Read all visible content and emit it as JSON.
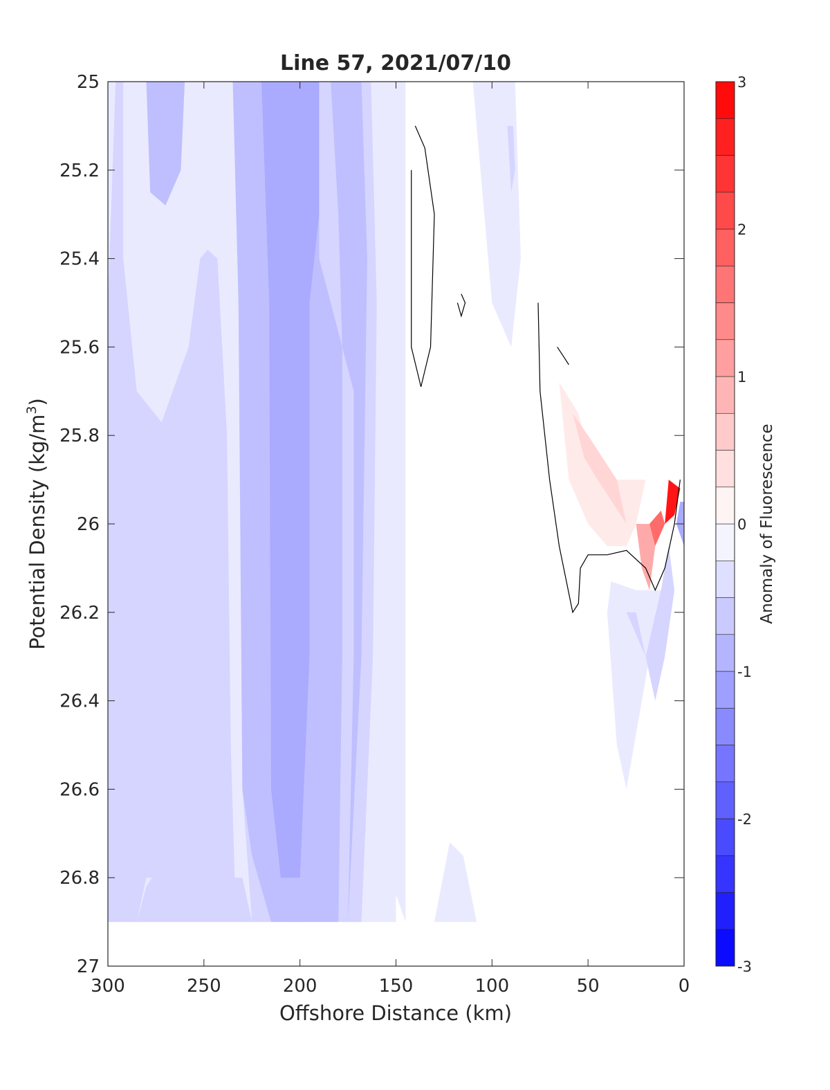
{
  "chart_data": {
    "type": "heatmap",
    "title": "Line 57, 2021/07/10",
    "xlabel": "Offshore Distance (km)",
    "ylabel_base": "Potential Density (kg/m",
    "ylabel_sup": "3",
    "ylabel_close": ")",
    "xlim": [
      300,
      0
    ],
    "ylim": [
      25,
      27
    ],
    "x_reversed": true,
    "y_reversed": true,
    "xticks": [
      300,
      250,
      200,
      150,
      100,
      50,
      0
    ],
    "xtick_labels": [
      "300",
      "250",
      "200",
      "150",
      "100",
      "50",
      "0"
    ],
    "yticks": [
      25,
      25.2,
      25.4,
      25.6,
      25.8,
      26,
      26.2,
      26.4,
      26.6,
      26.8,
      27
    ],
    "ytick_labels": [
      "25",
      "25.2",
      "25.4",
      "25.6",
      "25.8",
      "26",
      "26.2",
      "26.4",
      "26.6",
      "26.8",
      "27"
    ],
    "colorbar": {
      "label": "Anomaly of Fluorescence",
      "range": [
        -3,
        3
      ],
      "levels": 24,
      "ticks": [
        -3,
        -2,
        -1,
        0,
        1,
        2,
        3
      ],
      "tick_labels": [
        "-3",
        "-2",
        "-1",
        "0",
        "1",
        "2",
        "3"
      ],
      "negative_color": "#0000ff",
      "positive_color": "#ff0000",
      "zero_color": "#ffffff"
    },
    "regions": [
      {
        "level": -0.25,
        "points": [
          [
            300,
            25
          ],
          [
            300,
            26.9
          ],
          [
            150,
            26.9
          ],
          [
            158,
            26.3
          ],
          [
            160,
            25.7
          ],
          [
            158,
            25
          ],
          [
            145,
            25
          ],
          [
            145,
            26.9
          ]
        ]
      },
      {
        "level": -0.25,
        "points": [
          [
            300,
            25
          ],
          [
            150,
            25
          ],
          [
            150,
            26.9
          ],
          [
            300,
            26.9
          ]
        ]
      },
      {
        "level": 0,
        "points": [
          [
            246,
            26.05
          ],
          [
            245,
            26.6
          ],
          [
            248,
            26.55
          ],
          [
            248,
            26.05
          ]
        ]
      },
      {
        "level": -0.5,
        "points": [
          [
            292,
            25
          ],
          [
            292,
            25.4
          ],
          [
            285,
            25.7
          ],
          [
            272,
            25.77
          ],
          [
            258,
            25.6
          ],
          [
            252,
            25.4
          ],
          [
            248,
            25.38
          ],
          [
            243,
            25.4
          ],
          [
            238,
            25.8
          ],
          [
            236,
            26.5
          ],
          [
            234,
            26.8
          ],
          [
            230,
            26.8
          ],
          [
            225,
            26.9
          ],
          [
            265,
            26.9
          ],
          [
            270,
            26.8
          ],
          [
            280,
            26.8
          ],
          [
            285,
            26.9
          ],
          [
            300,
            26.9
          ],
          [
            300,
            25.5
          ],
          [
            296,
            25
          ],
          [
            163,
            25
          ],
          [
            160,
            25.5
          ],
          [
            162,
            26.3
          ],
          [
            168,
            26.9
          ],
          [
            225,
            26.9
          ],
          [
            230,
            26.6
          ],
          [
            232,
            25.5
          ],
          [
            234,
            25
          ]
        ]
      },
      {
        "level": -0.5,
        "points": [
          [
            274,
            26.78
          ],
          [
            268,
            26.8
          ],
          [
            262,
            26.9
          ],
          [
            285,
            26.9
          ],
          [
            280,
            26.82
          ]
        ]
      },
      {
        "level": -0.75,
        "points": [
          [
            280,
            25
          ],
          [
            278,
            25.25
          ],
          [
            270,
            25.28
          ],
          [
            262,
            25.2
          ],
          [
            260,
            25
          ],
          [
            235,
            25
          ],
          [
            232,
            25.5
          ],
          [
            230,
            26.6
          ],
          [
            225,
            26.75
          ],
          [
            215,
            26.9
          ],
          [
            175,
            26.9
          ],
          [
            172,
            26.3
          ],
          [
            172,
            25.7
          ],
          [
            178,
            25.6
          ],
          [
            180,
            25.3
          ],
          [
            184,
            25
          ],
          [
            168,
            25
          ],
          [
            165,
            25.4
          ],
          [
            168,
            26.3
          ],
          [
            175,
            26.9
          ],
          [
            200,
            26.9
          ],
          [
            202,
            26.6
          ],
          [
            210,
            25.5
          ],
          [
            215,
            25
          ],
          [
            232,
            25
          ]
        ]
      },
      {
        "level": -0.75,
        "points": [
          [
            230,
            25
          ],
          [
            228,
            25.3
          ],
          [
            222,
            26.5
          ],
          [
            218,
            26.8
          ],
          [
            205,
            26.9
          ],
          [
            180,
            26.9
          ],
          [
            178,
            26.3
          ],
          [
            178,
            25.6
          ],
          [
            190,
            25.4
          ],
          [
            190,
            25
          ],
          [
            180,
            25
          ]
        ]
      },
      {
        "level": -1.0,
        "points": [
          [
            220,
            25
          ],
          [
            216,
            25.5
          ],
          [
            215,
            26.6
          ],
          [
            210,
            26.8
          ],
          [
            200,
            26.8
          ],
          [
            195,
            26.3
          ],
          [
            195,
            25.5
          ],
          [
            190,
            25.3
          ],
          [
            190,
            25
          ],
          [
            210,
            25
          ]
        ]
      },
      {
        "level": -0.25,
        "points": [
          [
            110,
            25
          ],
          [
            108,
            25.1
          ],
          [
            100,
            25.5
          ],
          [
            90,
            25.6
          ],
          [
            85,
            25.4
          ],
          [
            88,
            25
          ],
          [
            108,
            25
          ]
        ]
      },
      {
        "level": -0.5,
        "points": [
          [
            92,
            25.1
          ],
          [
            90,
            25.25
          ],
          [
            88,
            25.2
          ],
          [
            89,
            25.1
          ]
        ]
      },
      {
        "level": -0.25,
        "points": [
          [
            130,
            26.9
          ],
          [
            122,
            26.72
          ],
          [
            115,
            26.75
          ],
          [
            108,
            26.9
          ]
        ]
      },
      {
        "level": -0.25,
        "points": [
          [
            40,
            26.2
          ],
          [
            35,
            26.5
          ],
          [
            30,
            26.6
          ],
          [
            20,
            26.35
          ],
          [
            12,
            26.15
          ],
          [
            25,
            26.15
          ],
          [
            38,
            26.13
          ]
        ]
      },
      {
        "level": -0.5,
        "points": [
          [
            30,
            26.2
          ],
          [
            25,
            26.25
          ],
          [
            20,
            26.3
          ],
          [
            25,
            26.2
          ]
        ]
      },
      {
        "level": -0.5,
        "points": [
          [
            20,
            26.3
          ],
          [
            15,
            26.4
          ],
          [
            10,
            26.3
          ],
          [
            5,
            26.15
          ],
          [
            8,
            26.05
          ],
          [
            12,
            26.15
          ]
        ]
      },
      {
        "level": -1.0,
        "points": [
          [
            4,
            26.0
          ],
          [
            0,
            26.05
          ],
          [
            0,
            25.95
          ],
          [
            2,
            25.95
          ]
        ]
      },
      {
        "level": 0.25,
        "points": [
          [
            65,
            25.68
          ],
          [
            60,
            25.9
          ],
          [
            50,
            26.0
          ],
          [
            40,
            26.05
          ],
          [
            30,
            26.05
          ],
          [
            25,
            26.0
          ],
          [
            20,
            25.9
          ],
          [
            45,
            25.9
          ],
          [
            55,
            25.75
          ]
        ]
      },
      {
        "level": 0.5,
        "points": [
          [
            58,
            25.75
          ],
          [
            52,
            25.85
          ],
          [
            45,
            25.9
          ],
          [
            30,
            26.0
          ],
          [
            35,
            25.9
          ],
          [
            50,
            25.8
          ]
        ]
      },
      {
        "level": 1.0,
        "points": [
          [
            25,
            26.0
          ],
          [
            22,
            26.1
          ],
          [
            18,
            26.15
          ],
          [
            15,
            26.05
          ],
          [
            18,
            26.0
          ]
        ]
      },
      {
        "level": 1.75,
        "points": [
          [
            18,
            26.0
          ],
          [
            15,
            26.05
          ],
          [
            10,
            26.0
          ],
          [
            12,
            25.97
          ]
        ]
      },
      {
        "level": 2.75,
        "points": [
          [
            10,
            26.0
          ],
          [
            5,
            25.98
          ],
          [
            2,
            25.92
          ],
          [
            8,
            25.9
          ]
        ]
      }
    ],
    "contours": [
      {
        "level": 0,
        "points": [
          [
            140,
            25.1
          ],
          [
            135,
            25.15
          ],
          [
            130,
            25.3
          ],
          [
            132,
            25.6
          ],
          [
            137,
            25.69
          ],
          [
            142,
            25.6
          ],
          [
            142,
            25.2
          ]
        ]
      },
      {
        "level": 0,
        "points": [
          [
            116,
            25.48
          ],
          [
            114,
            25.5
          ],
          [
            116,
            25.53
          ],
          [
            118,
            25.5
          ]
        ]
      },
      {
        "level": 0,
        "points": [
          [
            76,
            25.5
          ],
          [
            75,
            25.7
          ],
          [
            70,
            25.9
          ],
          [
            65,
            26.05
          ],
          [
            58,
            26.2
          ],
          [
            55,
            26.18
          ],
          [
            54,
            26.1
          ],
          [
            50,
            26.07
          ],
          [
            40,
            26.07
          ],
          [
            30,
            26.06
          ],
          [
            20,
            26.1
          ],
          [
            15,
            26.15
          ],
          [
            10,
            26.1
          ],
          [
            5,
            26.0
          ],
          [
            2,
            25.9
          ]
        ]
      },
      {
        "level": 0,
        "points": [
          [
            66,
            25.6
          ],
          [
            63,
            25.62
          ],
          [
            60,
            25.64
          ]
        ]
      }
    ]
  }
}
